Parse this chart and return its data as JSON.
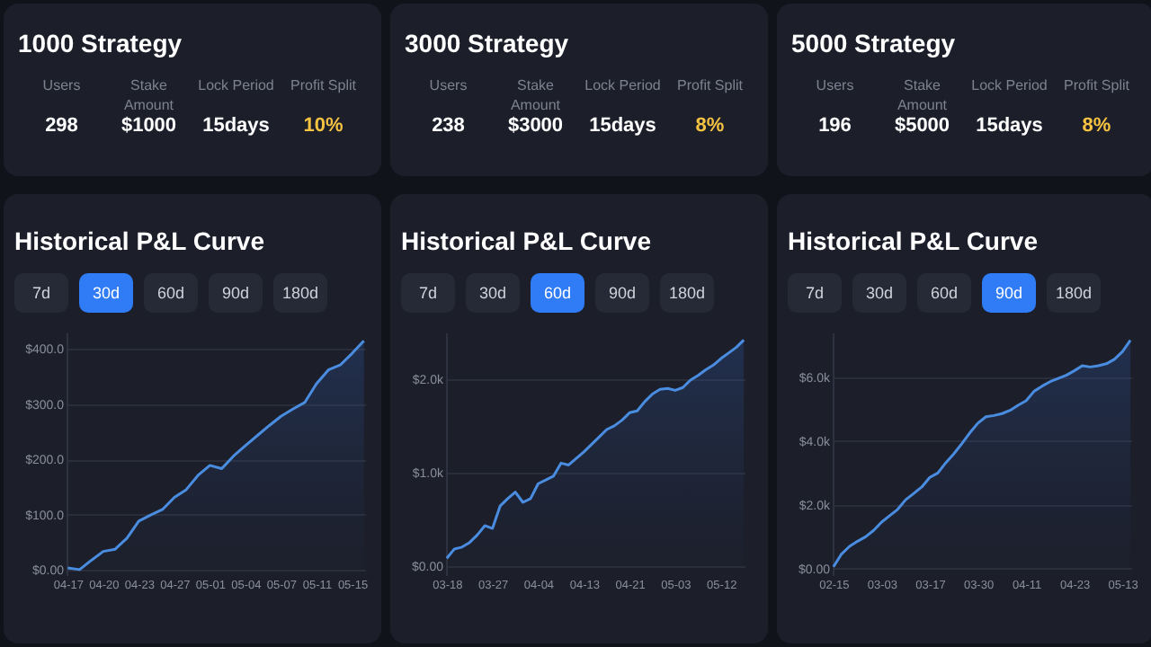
{
  "chart_data": [
    {
      "type": "other",
      "title": "1000 Strategy",
      "annotations": [
        "Users",
        "298",
        "Stake Amount",
        "$1000",
        "Lock Period",
        "15days",
        "Profit Split",
        "10%"
      ]
    },
    {
      "type": "other",
      "title": "3000 Strategy",
      "annotations": [
        "Users",
        "238",
        "Stake Amount",
        "$3000",
        "Lock Period",
        "15days",
        "Profit Split",
        "8%"
      ]
    },
    {
      "type": "other",
      "title": "5000 Strategy",
      "annotations": [
        "Users",
        "196",
        "Stake Amount",
        "$5000",
        "Lock Period",
        "15days",
        "Profit Split",
        "8%"
      ]
    },
    {
      "type": "area",
      "title": "Historical P&L Curve",
      "annotations": [
        "7d",
        "30d",
        "60d",
        "90d",
        "180d"
      ],
      "grid": "y",
      "ylim": [
        -10,
        430
      ],
      "yticks": [
        {
          "value": 0,
          "label": "$0.00"
        },
        {
          "value": 100,
          "label": "$100.0"
        },
        {
          "value": 200,
          "label": "$200.0"
        },
        {
          "value": 300,
          "label": "$300.0"
        },
        {
          "value": 400,
          "label": "$400.0"
        }
      ],
      "categories": [
        "04-17",
        null,
        null,
        "04-20",
        null,
        null,
        "04-23",
        null,
        null,
        "04-27",
        null,
        null,
        "05-01",
        null,
        null,
        "05-04",
        null,
        null,
        "05-07",
        null,
        null,
        "05-11",
        null,
        null,
        "05-15",
        null
      ],
      "series": [
        {
          "color": "#4a8de0",
          "values": [
            3,
            0,
            17,
            33,
            37,
            57,
            88,
            99,
            109,
            131,
            145,
            171,
            189,
            183,
            206,
            225,
            243,
            261,
            278,
            291,
            303,
            337,
            362,
            371,
            392,
            415
          ]
        }
      ]
    },
    {
      "type": "area",
      "title": "Historical P&L Curve",
      "annotations": [
        "7d",
        "30d",
        "60d",
        "90d",
        "180d"
      ],
      "grid": "y",
      "ylim": [
        -100,
        2500
      ],
      "yticks": [
        {
          "value": 0,
          "label": "$0.00"
        },
        {
          "value": 1000,
          "label": "$1.0k"
        },
        {
          "value": 2000,
          "label": "$2.0k"
        }
      ],
      "categories": [
        "03-18",
        null,
        null,
        null,
        null,
        null,
        "03-27",
        null,
        null,
        null,
        null,
        null,
        "04-04",
        null,
        null,
        null,
        null,
        null,
        "04-13",
        null,
        null,
        null,
        null,
        null,
        "04-21",
        null,
        null,
        null,
        null,
        null,
        "05-03",
        null,
        null,
        null,
        null,
        null,
        "05-12",
        null,
        null,
        null
      ],
      "series": [
        {
          "color": "#4a8de0",
          "values": [
            80,
            180,
            200,
            250,
            330,
            430,
            400,
            640,
            720,
            790,
            680,
            720,
            880,
            920,
            960,
            1100,
            1080,
            1150,
            1220,
            1300,
            1380,
            1460,
            1500,
            1560,
            1640,
            1660,
            1760,
            1840,
            1890,
            1900,
            1880,
            1910,
            1990,
            2040,
            2100,
            2150,
            2220,
            2280,
            2340,
            2420
          ]
        }
      ]
    },
    {
      "type": "area",
      "title": "Historical P&L Curve",
      "annotations": [
        "7d",
        "30d",
        "60d",
        "90d",
        "180d"
      ],
      "grid": "y",
      "ylim": [
        -200,
        7400
      ],
      "yticks": [
        {
          "value": 0,
          "label": "$0.00"
        },
        {
          "value": 2000,
          "label": "$2.0k"
        },
        {
          "value": 4000,
          "label": "$4.0k"
        },
        {
          "value": 6000,
          "label": "$6.0k"
        }
      ],
      "categories": [
        "02-15",
        null,
        null,
        null,
        null,
        null,
        "03-03",
        null,
        null,
        null,
        null,
        null,
        "03-17",
        null,
        null,
        null,
        null,
        null,
        "03-30",
        null,
        null,
        null,
        null,
        null,
        "04-11",
        null,
        null,
        null,
        null,
        null,
        "04-23",
        null,
        null,
        null,
        null,
        null,
        "05-13",
        null
      ],
      "series": [
        {
          "color": "#4a8de0",
          "values": [
            60,
            460,
            700,
            860,
            1000,
            1200,
            1460,
            1660,
            1860,
            2160,
            2360,
            2560,
            2860,
            3000,
            3320,
            3600,
            3920,
            4260,
            4560,
            4760,
            4800,
            4860,
            4960,
            5120,
            5260,
            5560,
            5720,
            5860,
            5960,
            6060,
            6200,
            6360,
            6320,
            6360,
            6420,
            6560,
            6800,
            7160
          ]
        }
      ]
    }
  ]
}
